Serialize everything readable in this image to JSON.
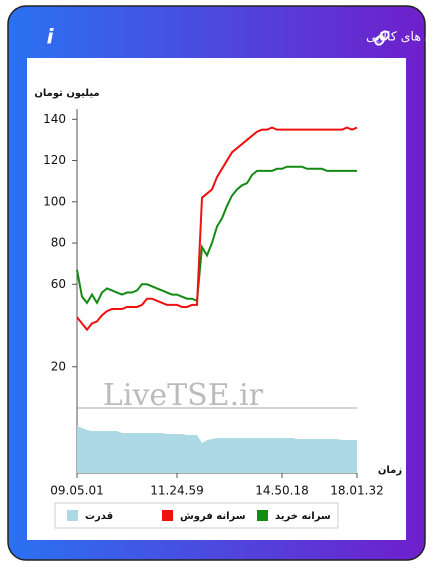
{
  "header": {
    "title": "سرانه ی خرید و فروش حقیقی در صندوق های کالایی",
    "icon": "i"
  },
  "chart_data": {
    "type": "line",
    "y_label": "میلیون تومان",
    "x_label": "زمان",
    "watermark": "LiveTSE.ir",
    "categories": [
      "09.05.01",
      null,
      null,
      null,
      null,
      null,
      null,
      null,
      null,
      null,
      null,
      null,
      null,
      null,
      null,
      null,
      null,
      null,
      null,
      null,
      "11.24.59",
      null,
      null,
      null,
      null,
      null,
      null,
      null,
      null,
      null,
      null,
      null,
      null,
      null,
      null,
      null,
      null,
      null,
      null,
      null,
      null,
      "14.50.18",
      null,
      null,
      null,
      null,
      null,
      null,
      null,
      null,
      null,
      null,
      null,
      null,
      null,
      null,
      "18.01.32"
    ],
    "ylim": [
      0,
      145
    ],
    "yticks": [
      20,
      60,
      80,
      100,
      120,
      140
    ],
    "y2lim": [
      0,
      50
    ],
    "series": [
      {
        "name": "سرانه خرید",
        "color": "#138a13",
        "values": [
          67,
          54,
          51,
          55,
          51,
          56,
          58,
          57,
          56,
          55,
          56,
          56,
          57,
          60,
          60,
          59,
          58,
          57,
          56,
          55,
          55,
          54,
          53,
          53,
          52,
          78,
          74,
          80,
          88,
          92,
          98,
          103,
          106,
          108,
          109,
          113,
          115,
          115,
          115,
          115,
          116,
          116,
          117,
          117,
          117,
          117,
          116,
          116,
          116,
          116,
          115,
          115,
          115,
          115,
          115,
          115,
          115
        ]
      },
      {
        "name": "سرانه فروش",
        "color": "#f01010",
        "values": [
          44,
          41,
          38,
          41,
          42,
          45,
          47,
          48,
          48,
          48,
          49,
          49,
          49,
          50,
          53,
          53,
          52,
          51,
          50,
          50,
          50,
          49,
          49,
          50,
          50,
          102,
          104,
          106,
          112,
          116,
          120,
          124,
          126,
          128,
          130,
          132,
          134,
          135,
          135,
          136,
          135,
          135,
          135,
          135,
          135,
          135,
          135,
          135,
          135,
          135,
          135,
          135,
          135,
          135,
          136,
          135,
          136
        ]
      },
      {
        "name": "قدرت",
        "color": "#add8e6",
        "axis": "y2",
        "values": [
          47,
          45,
          43,
          42,
          42,
          42,
          42,
          42,
          42,
          40,
          40,
          40,
          40,
          40,
          40,
          40,
          40,
          40,
          39,
          39,
          39,
          39,
          38,
          38,
          38,
          30,
          33,
          34,
          35,
          35,
          35,
          35,
          35,
          35,
          35,
          35,
          35,
          35,
          35,
          35,
          35,
          35,
          35,
          35,
          34,
          34,
          34,
          34,
          34,
          34,
          34,
          34,
          34,
          33,
          33,
          33,
          33
        ]
      }
    ]
  }
}
